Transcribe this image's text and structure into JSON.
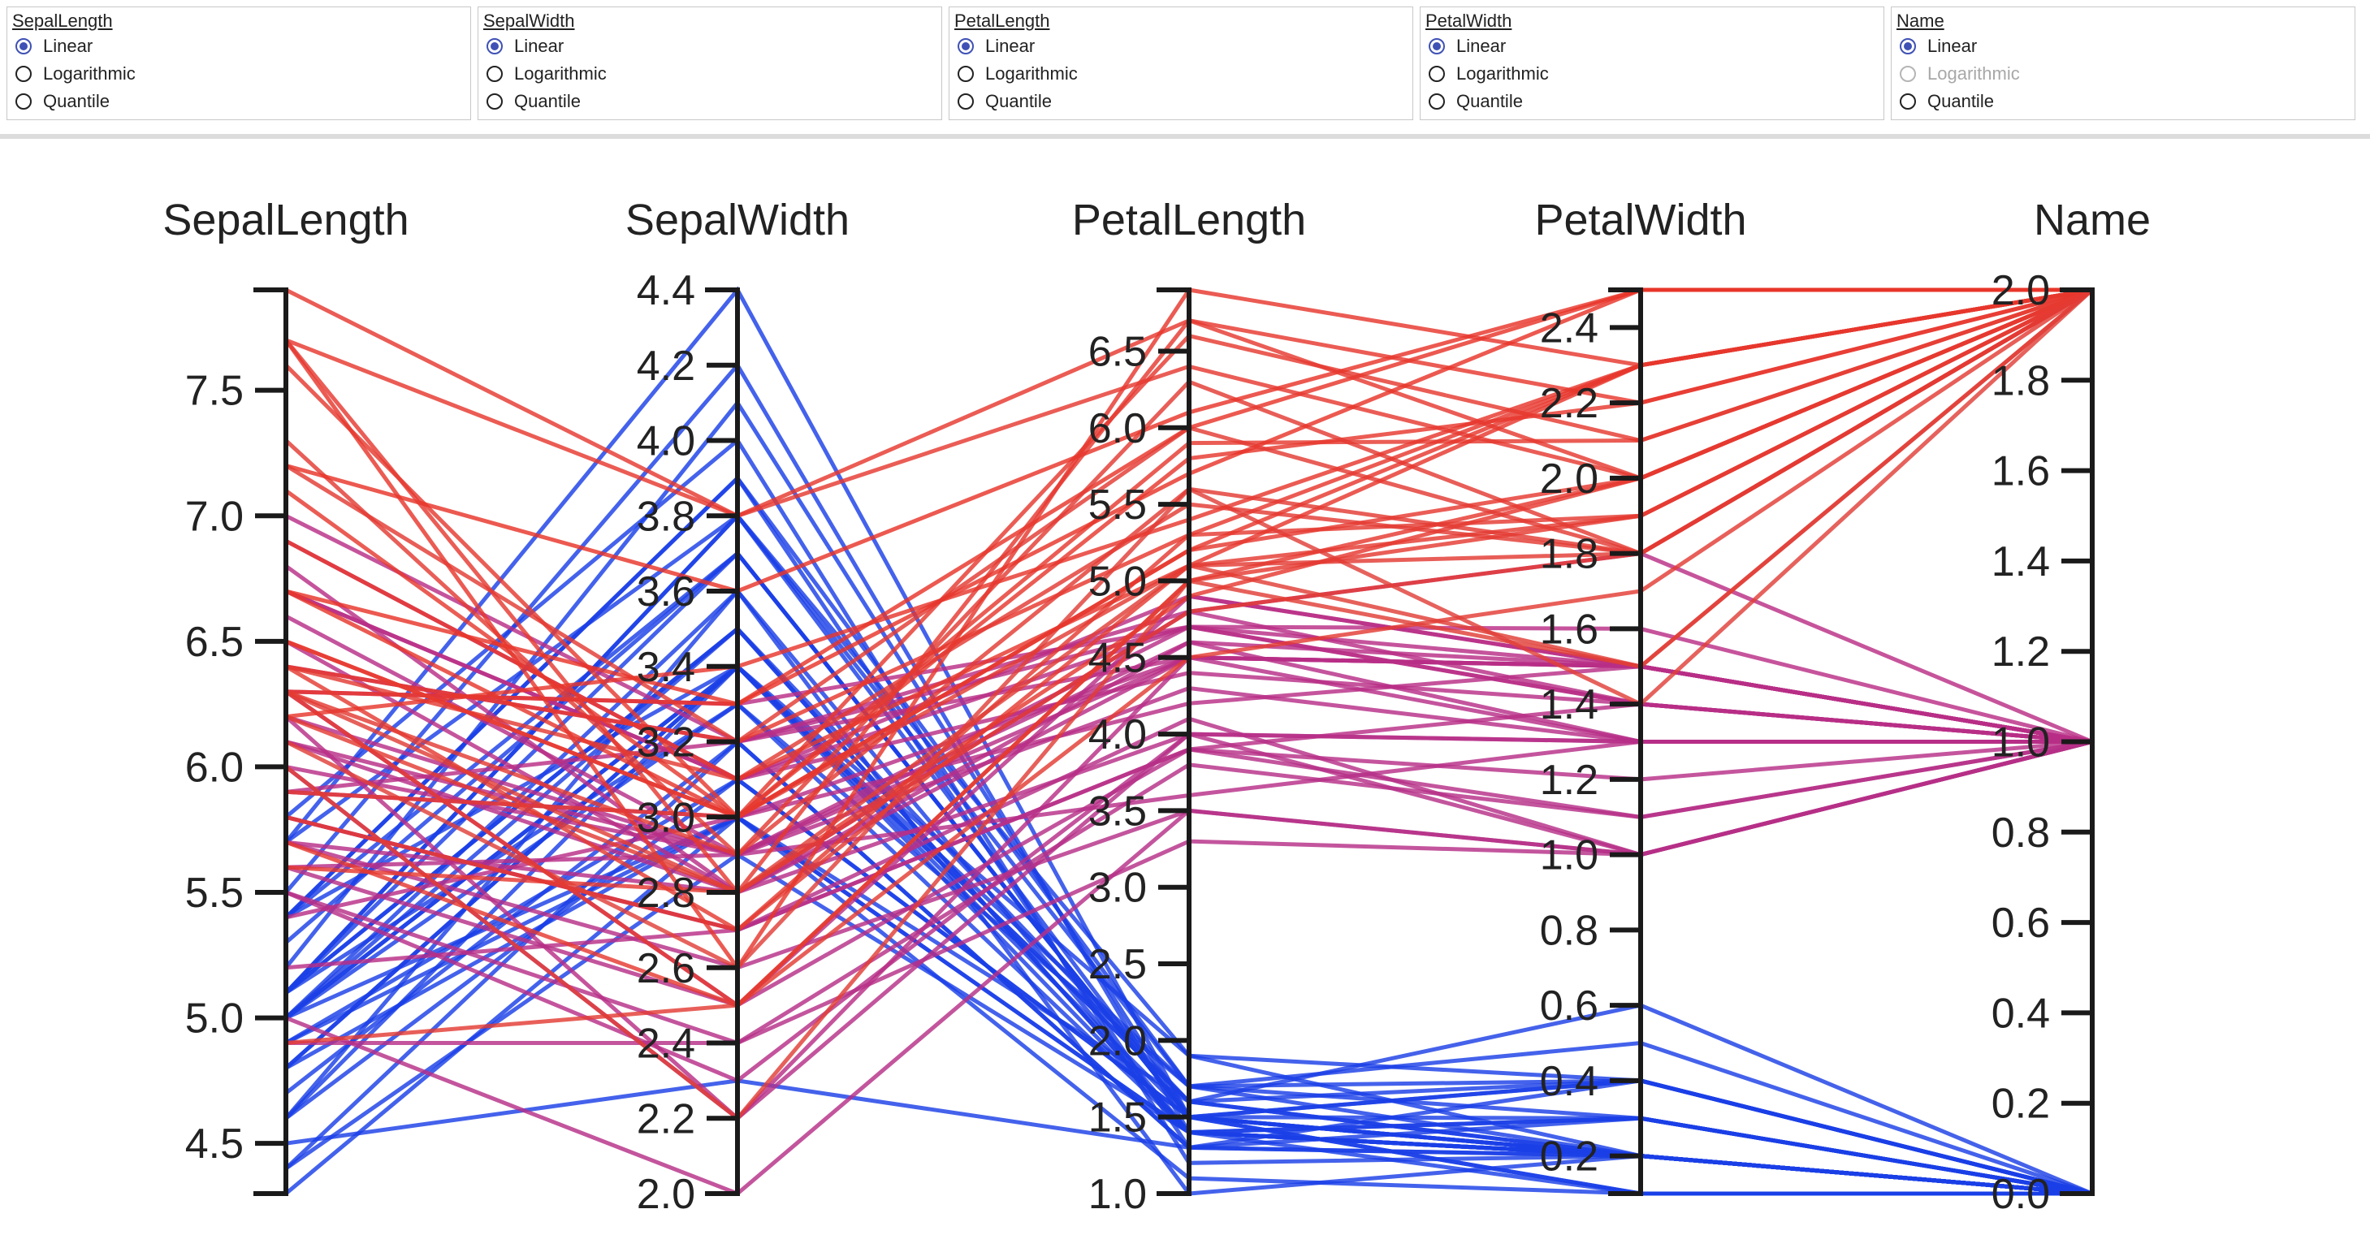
{
  "controls": [
    {
      "title": "SepalLength",
      "options": [
        "Linear",
        "Logarithmic",
        "Quantile"
      ],
      "selected": "Linear",
      "disabled": []
    },
    {
      "title": "SepalWidth",
      "options": [
        "Linear",
        "Logarithmic",
        "Quantile"
      ],
      "selected": "Linear",
      "disabled": []
    },
    {
      "title": "PetalLength",
      "options": [
        "Linear",
        "Logarithmic",
        "Quantile"
      ],
      "selected": "Linear",
      "disabled": []
    },
    {
      "title": "PetalWidth",
      "options": [
        "Linear",
        "Logarithmic",
        "Quantile"
      ],
      "selected": "Linear",
      "disabled": []
    },
    {
      "title": "Name",
      "options": [
        "Linear",
        "Logarithmic",
        "Quantile"
      ],
      "selected": "Linear",
      "disabled": [
        "Logarithmic"
      ]
    }
  ],
  "colors": {
    "accent": "#3f51b5",
    "low": "#1a3fe8",
    "mid": "#b0308c",
    "high": "#e8352a"
  },
  "chart_data": {
    "type": "parallel-coordinates",
    "grid": false,
    "color_by": "Name",
    "axes": [
      {
        "name": "SepalLength",
        "domain": [
          4.3,
          7.9
        ],
        "ticks": [
          "4.5",
          "5.0",
          "5.5",
          "6.0",
          "6.5",
          "7.0",
          "7.5"
        ]
      },
      {
        "name": "SepalWidth",
        "domain": [
          2.0,
          4.4
        ],
        "ticks": [
          "2.0",
          "2.2",
          "2.4",
          "2.6",
          "2.8",
          "3.0",
          "3.2",
          "3.4",
          "3.6",
          "3.8",
          "4.0",
          "4.2",
          "4.4"
        ]
      },
      {
        "name": "PetalLength",
        "domain": [
          1.0,
          6.9
        ],
        "ticks": [
          "1.0",
          "1.5",
          "2.0",
          "2.5",
          "3.0",
          "3.5",
          "4.0",
          "4.5",
          "5.0",
          "5.5",
          "6.0",
          "6.5"
        ]
      },
      {
        "name": "PetalWidth",
        "domain": [
          0.1,
          2.5
        ],
        "ticks": [
          "0.2",
          "0.4",
          "0.6",
          "0.8",
          "1.0",
          "1.2",
          "1.4",
          "1.6",
          "1.8",
          "2.0",
          "2.2",
          "2.4"
        ]
      },
      {
        "name": "Name",
        "domain": [
          0.0,
          2.0
        ],
        "ticks": [
          "0.0",
          "0.2",
          "0.4",
          "0.6",
          "0.8",
          "1.0",
          "1.2",
          "1.4",
          "1.6",
          "1.8",
          "2.0"
        ]
      }
    ],
    "rows": [
      [
        5.1,
        3.5,
        1.4,
        0.2,
        0
      ],
      [
        4.9,
        3.0,
        1.4,
        0.2,
        0
      ],
      [
        4.7,
        3.2,
        1.3,
        0.2,
        0
      ],
      [
        4.6,
        3.1,
        1.5,
        0.2,
        0
      ],
      [
        5.0,
        3.6,
        1.4,
        0.2,
        0
      ],
      [
        5.4,
        3.9,
        1.7,
        0.4,
        0
      ],
      [
        4.6,
        3.4,
        1.4,
        0.3,
        0
      ],
      [
        5.0,
        3.4,
        1.5,
        0.2,
        0
      ],
      [
        4.4,
        2.9,
        1.4,
        0.2,
        0
      ],
      [
        4.9,
        3.1,
        1.5,
        0.1,
        0
      ],
      [
        5.4,
        3.7,
        1.5,
        0.2,
        0
      ],
      [
        4.8,
        3.4,
        1.6,
        0.2,
        0
      ],
      [
        4.8,
        3.0,
        1.4,
        0.1,
        0
      ],
      [
        4.3,
        3.0,
        1.1,
        0.1,
        0
      ],
      [
        5.8,
        4.0,
        1.2,
        0.2,
        0
      ],
      [
        5.7,
        4.4,
        1.5,
        0.4,
        0
      ],
      [
        5.4,
        3.9,
        1.3,
        0.4,
        0
      ],
      [
        5.1,
        3.5,
        1.4,
        0.3,
        0
      ],
      [
        5.7,
        3.8,
        1.7,
        0.3,
        0
      ],
      [
        5.1,
        3.8,
        1.5,
        0.3,
        0
      ],
      [
        5.4,
        3.4,
        1.7,
        0.2,
        0
      ],
      [
        5.1,
        3.7,
        1.5,
        0.4,
        0
      ],
      [
        4.6,
        3.6,
        1.0,
        0.2,
        0
      ],
      [
        5.1,
        3.3,
        1.7,
        0.5,
        0
      ],
      [
        4.8,
        3.4,
        1.9,
        0.2,
        0
      ],
      [
        5.0,
        3.0,
        1.6,
        0.2,
        0
      ],
      [
        5.0,
        3.4,
        1.6,
        0.4,
        0
      ],
      [
        5.2,
        4.1,
        1.5,
        0.1,
        0
      ],
      [
        5.5,
        4.2,
        1.4,
        0.2,
        0
      ],
      [
        4.5,
        2.3,
        1.3,
        0.3,
        0
      ],
      [
        5.0,
        3.5,
        1.6,
        0.6,
        0
      ],
      [
        5.1,
        3.8,
        1.9,
        0.4,
        0
      ],
      [
        5.3,
        3.7,
        1.5,
        0.2,
        0
      ],
      [
        5.0,
        3.3,
        1.4,
        0.2,
        0
      ],
      [
        4.4,
        3.2,
        1.3,
        0.2,
        0
      ],
      [
        7.0,
        3.2,
        4.7,
        1.4,
        1
      ],
      [
        6.4,
        3.2,
        4.5,
        1.5,
        1
      ],
      [
        6.9,
        3.1,
        4.9,
        1.5,
        1
      ],
      [
        5.5,
        2.3,
        4.0,
        1.3,
        1
      ],
      [
        6.5,
        2.8,
        4.6,
        1.5,
        1
      ],
      [
        5.7,
        2.8,
        4.5,
        1.3,
        1
      ],
      [
        6.3,
        3.3,
        4.7,
        1.6,
        1
      ],
      [
        4.9,
        2.4,
        3.3,
        1.0,
        1
      ],
      [
        6.6,
        2.9,
        4.6,
        1.3,
        1
      ],
      [
        5.2,
        2.7,
        3.9,
        1.4,
        1
      ],
      [
        5.0,
        2.0,
        3.5,
        1.0,
        1
      ],
      [
        5.9,
        3.0,
        4.2,
        1.5,
        1
      ],
      [
        6.0,
        2.2,
        4.0,
        1.0,
        1
      ],
      [
        6.1,
        2.9,
        4.7,
        1.4,
        1
      ],
      [
        5.6,
        2.9,
        3.6,
        1.3,
        1
      ],
      [
        6.7,
        3.1,
        4.4,
        1.4,
        1
      ],
      [
        5.8,
        2.7,
        4.1,
        1.0,
        1
      ],
      [
        6.2,
        2.2,
        4.5,
        1.5,
        1
      ],
      [
        5.6,
        2.5,
        3.9,
        1.1,
        1
      ],
      [
        5.9,
        3.2,
        4.8,
        1.8,
        1
      ],
      [
        6.1,
        2.8,
        4.0,
        1.3,
        1
      ],
      [
        6.3,
        2.5,
        4.9,
        1.5,
        1
      ],
      [
        6.8,
        2.8,
        4.8,
        1.4,
        1
      ],
      [
        6.0,
        2.9,
        4.5,
        1.5,
        1
      ],
      [
        5.5,
        2.4,
        3.8,
        1.1,
        1
      ],
      [
        5.8,
        2.7,
        3.9,
        1.2,
        1
      ],
      [
        5.4,
        3.0,
        4.5,
        1.5,
        1
      ],
      [
        6.7,
        3.1,
        4.7,
        1.5,
        1
      ],
      [
        5.7,
        2.6,
        3.5,
        1.0,
        1
      ],
      [
        6.2,
        2.9,
        4.3,
        1.3,
        1
      ],
      [
        6.3,
        3.3,
        6.0,
        2.5,
        2
      ],
      [
        5.8,
        2.7,
        5.1,
        1.9,
        2
      ],
      [
        7.1,
        3.0,
        5.9,
        2.1,
        2
      ],
      [
        6.5,
        3.0,
        5.8,
        2.2,
        2
      ],
      [
        7.6,
        3.0,
        6.6,
        2.1,
        2
      ],
      [
        4.9,
        2.5,
        4.5,
        1.7,
        2
      ],
      [
        7.3,
        2.9,
        6.3,
        1.8,
        2
      ],
      [
        7.2,
        3.6,
        6.1,
        2.5,
        2
      ],
      [
        6.4,
        2.7,
        5.3,
        1.9,
        2
      ],
      [
        5.7,
        2.5,
        5.0,
        2.0,
        2
      ],
      [
        6.4,
        3.2,
        5.3,
        2.3,
        2
      ],
      [
        7.7,
        3.8,
        6.7,
        2.2,
        2
      ],
      [
        7.7,
        2.6,
        6.9,
        2.3,
        2
      ],
      [
        6.0,
        2.2,
        5.0,
        1.5,
        2
      ],
      [
        5.6,
        2.8,
        4.9,
        2.0,
        2
      ],
      [
        7.7,
        2.8,
        6.7,
        2.0,
        2
      ],
      [
        7.2,
        3.2,
        6.0,
        1.8,
        2
      ],
      [
        6.2,
        2.8,
        4.8,
        1.8,
        2
      ],
      [
        7.9,
        3.8,
        6.4,
        2.0,
        2
      ],
      [
        6.3,
        2.8,
        5.1,
        1.5,
        2
      ],
      [
        6.1,
        2.6,
        5.6,
        1.4,
        2
      ],
      [
        6.4,
        3.1,
        5.5,
        1.8,
        2
      ],
      [
        6.9,
        3.1,
        5.1,
        2.3,
        2
      ],
      [
        6.7,
        3.3,
        5.7,
        2.5,
        2
      ],
      [
        6.3,
        2.5,
        5.0,
        1.9,
        2
      ],
      [
        6.5,
        3.0,
        5.2,
        2.0,
        2
      ],
      [
        6.2,
        3.4,
        5.4,
        2.3,
        2
      ],
      [
        5.9,
        3.0,
        5.1,
        1.8,
        2
      ],
      [
        6.7,
        3.0,
        5.2,
        2.3,
        2
      ],
      [
        6.3,
        2.9,
        5.6,
        1.8,
        2
      ]
    ]
  }
}
